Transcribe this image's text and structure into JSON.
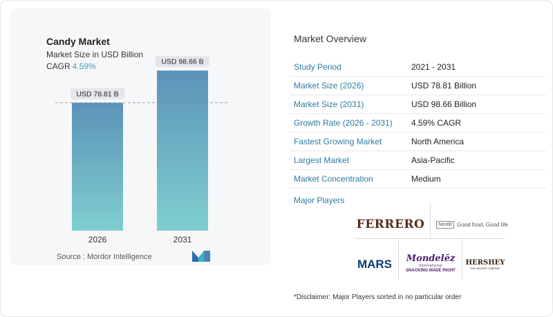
{
  "chart": {
    "title": "Candy Market",
    "subtitle": "Market Size in USD Billion",
    "cagr_label": "CAGR",
    "cagr_value": "4.59%",
    "source": "Source :  Mordor Intelligence"
  },
  "chart_data": {
    "type": "bar",
    "categories": [
      "2026",
      "2031"
    ],
    "values": [
      78.81,
      98.66
    ],
    "data_labels": [
      "USD 78.81 B",
      "USD 98.66 B"
    ],
    "title": "Candy Market",
    "subtitle": "Market Size in USD Billion",
    "xlabel": "",
    "ylabel": "",
    "ylim": [
      0,
      100
    ],
    "grid": false,
    "reference_line": "dashed line at first bar value",
    "colors": {
      "bar_top": "#5b93b8",
      "bar_bottom": "#7fcfcf",
      "label_bg": "#e4e6ea",
      "reference_line": "#9aa0a8"
    }
  },
  "overview": {
    "title": "Market Overview",
    "rows": [
      {
        "label": "Study Period",
        "value": "2021 - 2031"
      },
      {
        "label": "Market Size (2026)",
        "value": "USD 78.81 Billion"
      },
      {
        "label": "Market Size (2031)",
        "value": "USD 98.66 Billion"
      },
      {
        "label": "Growth Rate (2026 - 2031)",
        "value": "4.59% CAGR"
      },
      {
        "label": "Fastest Growing Market",
        "value": "North America"
      },
      {
        "label": "Largest Market",
        "value": "Asia-Pacific"
      },
      {
        "label": "Market Concentration",
        "value": "Medium"
      }
    ],
    "players_title": "Major Players",
    "players": {
      "ferrero": "FERRERO",
      "nestle_mark": "Nestlé",
      "nestle_tagline": "Good food, Good life",
      "mars": "MARS",
      "mondelez_name": "Mondelēz",
      "mondelez_sub": "International",
      "mondelez_tagline": "SNACKING MADE RIGHT",
      "hershey": "HERSHEY",
      "hershey_sub": "THE HERSHEY COMPANY"
    },
    "disclaimer": "*Disclaimer: Major Players sorted in no particular order"
  }
}
